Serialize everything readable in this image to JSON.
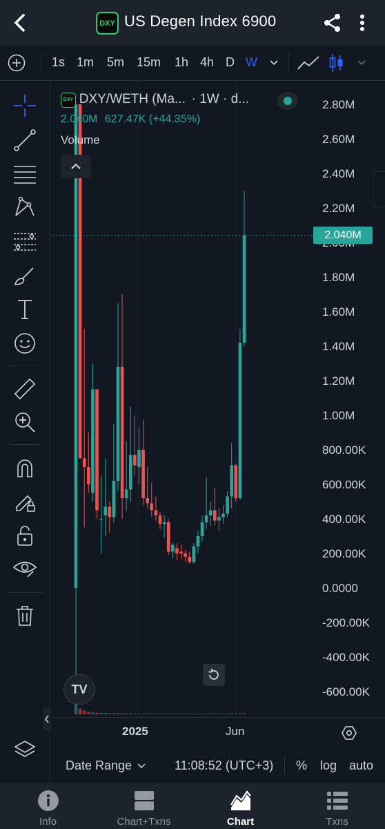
{
  "header": {
    "title": "US Degen Index 6900",
    "logo_text": "DXY",
    "back_icon": "chevron-left-icon",
    "share_icon": "share-icon",
    "more_icon": "more-vertical-icon"
  },
  "intervals": {
    "items": [
      "1s",
      "1m",
      "5m",
      "15m",
      "1h",
      "4h",
      "D",
      "W"
    ],
    "active": "W"
  },
  "legend": {
    "symbol": "DXY/WETH (Ma...",
    "interval": "· 1W · d...",
    "price": "2.040M",
    "change": "627.47K (+44.35%)",
    "volume_label": "Volume"
  },
  "price_axis": {
    "labels": [
      "2.80M",
      "2.60M",
      "2.40M",
      "2.20M",
      "2.00M",
      "1.80M",
      "1.60M",
      "1.40M",
      "1.20M",
      "1.00M",
      "800.00K",
      "600.00K",
      "400.00K",
      "200.00K",
      "0.0000",
      "-200.00K",
      "-400.00K",
      "-600.00K"
    ],
    "current_price_tag": "2.040M"
  },
  "time_axis": {
    "label_2025": "2025",
    "label_jun": "Jun"
  },
  "bottom_bar": {
    "date_range": "Date Range",
    "time": "11:08:52 (UTC+3)",
    "percent": "%",
    "log": "log",
    "auto": "auto"
  },
  "nav": {
    "tabs": [
      {
        "label": "Info"
      },
      {
        "label": "Chart+Txns"
      },
      {
        "label": "Chart"
      },
      {
        "label": "Txns"
      }
    ],
    "active": "Chart"
  },
  "tv_logo_text": "TV",
  "colors": {
    "up": "#26a69a",
    "down": "#ef5350",
    "active": "#2962ff",
    "background": "#131722"
  },
  "chart_data": {
    "type": "candlestick",
    "title": "DXY/WETH",
    "interval": "1W",
    "ylim": [
      -700000,
      2900000
    ],
    "candles": [
      {
        "o": 0,
        "h": 2800000,
        "l": -650000,
        "c": 2800000
      },
      {
        "o": 2800000,
        "h": 2800000,
        "l": 750000,
        "c": 750000
      },
      {
        "o": 750000,
        "h": 1500000,
        "l": 350000,
        "c": 700000
      },
      {
        "o": 700000,
        "h": 900000,
        "l": 550000,
        "c": 600000
      },
      {
        "o": 550000,
        "h": 1300000,
        "l": 500000,
        "c": 1150000
      },
      {
        "o": 1150000,
        "h": 1150000,
        "l": 400000,
        "c": 450000
      },
      {
        "o": 400000,
        "h": 650000,
        "l": 200000,
        "c": 400000
      },
      {
        "o": 420000,
        "h": 750000,
        "l": 300000,
        "c": 470000
      },
      {
        "o": 470000,
        "h": 500000,
        "l": 320000,
        "c": 410000
      },
      {
        "o": 410000,
        "h": 950000,
        "l": 380000,
        "c": 620000
      },
      {
        "o": 620000,
        "h": 1650000,
        "l": 560000,
        "c": 1280000
      },
      {
        "o": 1280000,
        "h": 1700000,
        "l": 400000,
        "c": 520000
      },
      {
        "o": 520000,
        "h": 850000,
        "l": 450000,
        "c": 570000
      },
      {
        "o": 570000,
        "h": 1050000,
        "l": 500000,
        "c": 770000
      },
      {
        "o": 770000,
        "h": 1000000,
        "l": 650000,
        "c": 710000
      },
      {
        "o": 700000,
        "h": 930000,
        "l": 600000,
        "c": 800000
      },
      {
        "o": 800000,
        "h": 970000,
        "l": 480000,
        "c": 520000
      },
      {
        "o": 520000,
        "h": 700000,
        "l": 460000,
        "c": 490000
      },
      {
        "o": 490000,
        "h": 610000,
        "l": 410000,
        "c": 450000
      },
      {
        "o": 450000,
        "h": 530000,
        "l": 390000,
        "c": 420000
      },
      {
        "o": 420000,
        "h": 440000,
        "l": 340000,
        "c": 370000
      },
      {
        "o": 370000,
        "h": 420000,
        "l": 290000,
        "c": 380000
      },
      {
        "o": 380000,
        "h": 400000,
        "l": 190000,
        "c": 210000
      },
      {
        "o": 210000,
        "h": 260000,
        "l": 170000,
        "c": 250000
      },
      {
        "o": 230000,
        "h": 260000,
        "l": 160000,
        "c": 200000
      },
      {
        "o": 210000,
        "h": 250000,
        "l": 170000,
        "c": 200000
      },
      {
        "o": 200000,
        "h": 220000,
        "l": 150000,
        "c": 180000
      },
      {
        "o": 180000,
        "h": 210000,
        "l": 140000,
        "c": 150000
      },
      {
        "o": 150000,
        "h": 260000,
        "l": 140000,
        "c": 240000
      },
      {
        "o": 240000,
        "h": 330000,
        "l": 200000,
        "c": 300000
      },
      {
        "o": 300000,
        "h": 420000,
        "l": 270000,
        "c": 380000
      },
      {
        "o": 380000,
        "h": 640000,
        "l": 340000,
        "c": 420000
      },
      {
        "o": 420000,
        "h": 500000,
        "l": 360000,
        "c": 450000
      },
      {
        "o": 450000,
        "h": 580000,
        "l": 360000,
        "c": 390000
      },
      {
        "o": 390000,
        "h": 460000,
        "l": 330000,
        "c": 410000
      },
      {
        "o": 410000,
        "h": 480000,
        "l": 370000,
        "c": 430000
      },
      {
        "o": 430000,
        "h": 560000,
        "l": 410000,
        "c": 530000
      },
      {
        "o": 530000,
        "h": 840000,
        "l": 460000,
        "c": 710000
      },
      {
        "o": 710000,
        "h": 720000,
        "l": 500000,
        "c": 520000
      },
      {
        "o": 520000,
        "h": 1500000,
        "l": 510000,
        "c": 1420000
      },
      {
        "o": 1420000,
        "h": 2300000,
        "l": 1400000,
        "c": 2040000
      }
    ],
    "volume_scale_note": "volume bars shown at bottom",
    "volume": [
      40,
      18,
      12,
      8,
      6,
      5,
      4,
      4,
      3,
      3,
      4,
      3,
      3,
      3,
      2,
      2,
      2,
      2,
      2,
      2,
      2,
      2,
      2,
      2,
      2,
      2,
      2,
      2,
      2,
      2,
      2,
      2,
      2,
      2,
      2,
      2,
      2,
      3,
      2,
      3,
      3
    ]
  }
}
